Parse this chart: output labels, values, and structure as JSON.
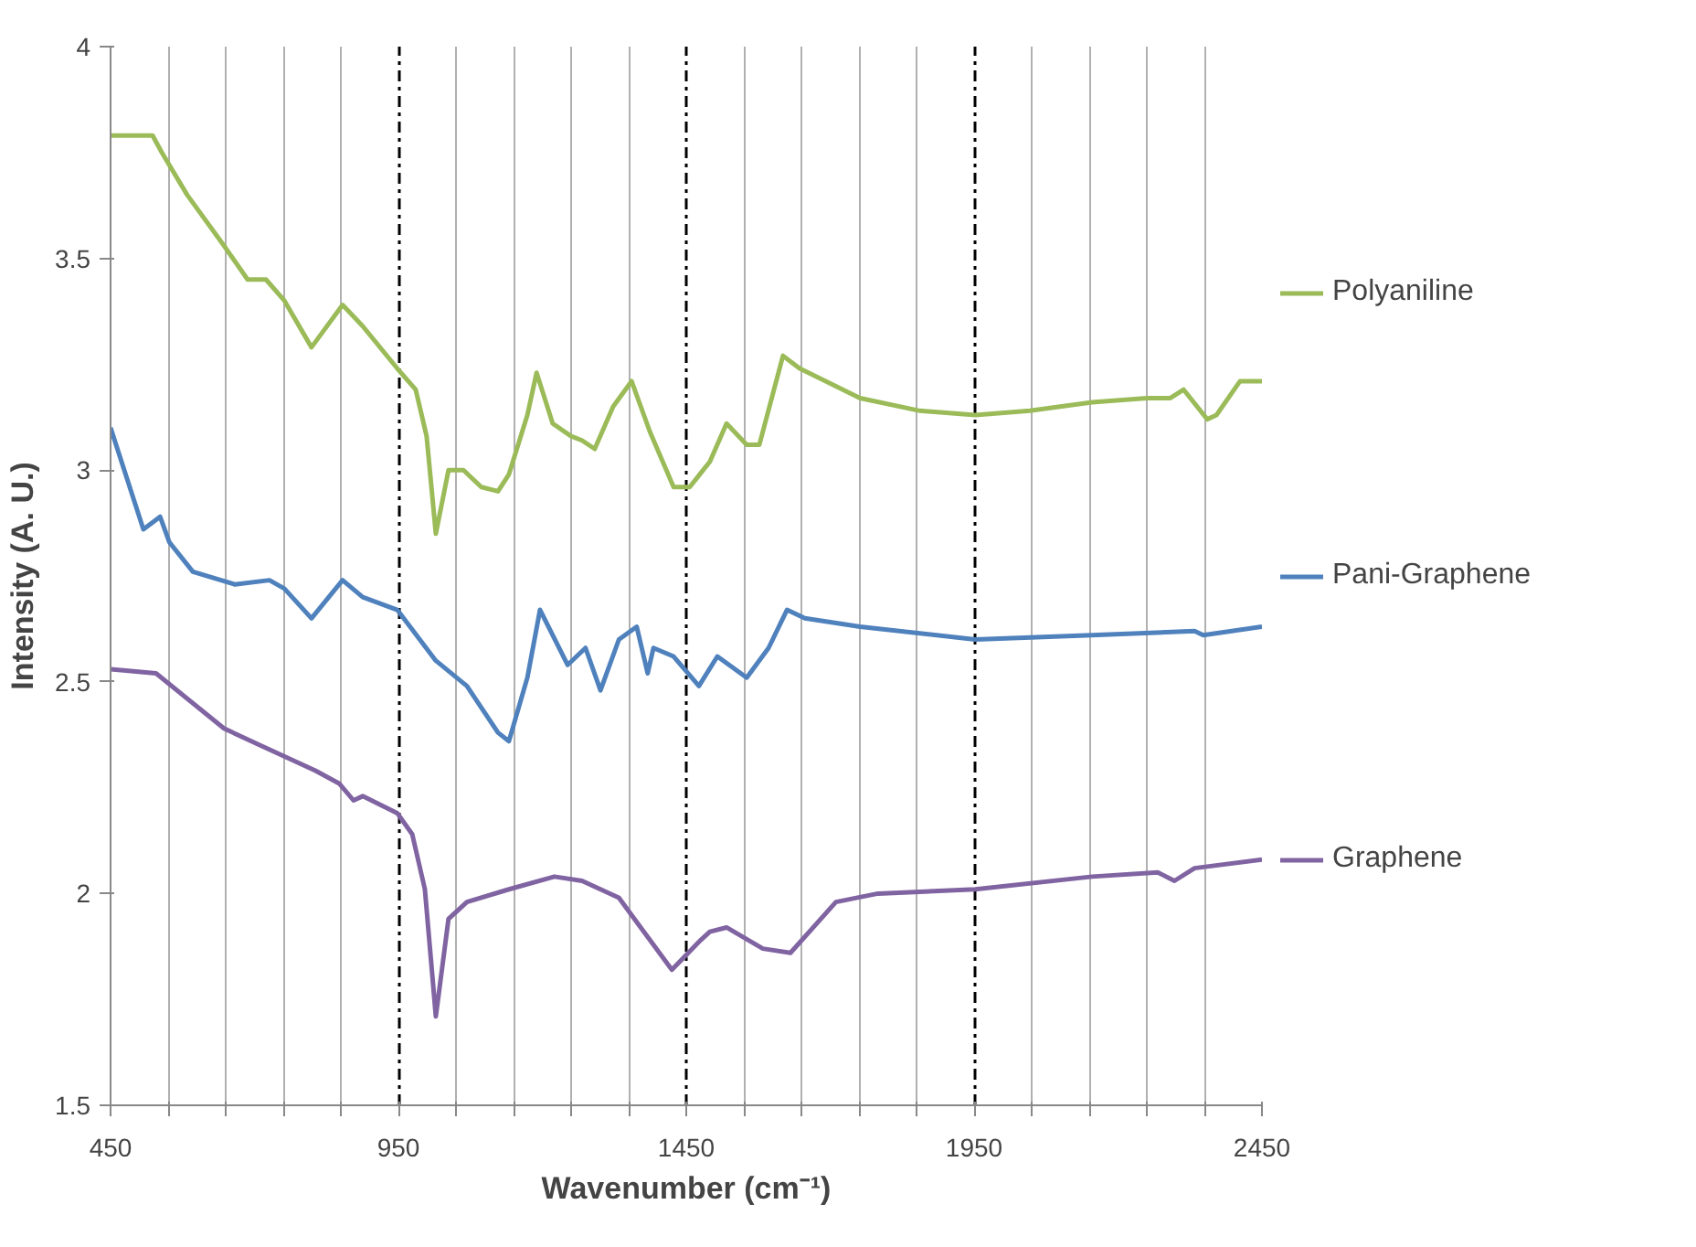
{
  "chart_data": {
    "type": "line",
    "xlabel": "Wavenumber (cm⁻¹)",
    "ylabel": "Intensity (A. U.)",
    "xlim": [
      450,
      2450
    ],
    "ylim": [
      1.5,
      4
    ],
    "xticks": [
      450,
      {
        "value": 550,
        "label": null
      },
      {
        "value": 650,
        "label": null
      },
      {
        "value": 750,
        "label": null
      },
      {
        "value": 850,
        "label": null
      },
      950,
      {
        "value": 1050,
        "label": null
      },
      {
        "value": 1150,
        "label": null
      },
      {
        "value": 1250,
        "label": null
      },
      {
        "value": 1350,
        "label": null
      },
      1450,
      {
        "value": 1550,
        "label": null
      },
      {
        "value": 1650,
        "label": null
      },
      {
        "value": 1750,
        "label": null
      },
      {
        "value": 1850,
        "label": null
      },
      1950,
      {
        "value": 2050,
        "label": null
      },
      {
        "value": 2150,
        "label": null
      },
      {
        "value": 2250,
        "label": null
      },
      {
        "value": 2350,
        "label": null
      },
      2450
    ],
    "yticks": [
      1.5,
      2,
      2.5,
      3,
      3.5,
      4
    ],
    "grid": "x",
    "legend": "right",
    "marker": "none",
    "line_style": "solid",
    "series": [
      {
        "name": "Polyaniline",
        "color": "#9bbb59",
        "x": [
          450,
          523,
          539,
          583,
          647,
          688,
          720,
          752,
          799,
          853,
          888,
          948,
          980,
          999,
          1015,
          1037,
          1063,
          1094,
          1123,
          1142,
          1174,
          1190,
          1218,
          1250,
          1269,
          1291,
          1323,
          1355,
          1387,
          1428,
          1444,
          1456,
          1491,
          1520,
          1555,
          1577,
          1618,
          1647,
          1752,
          1856,
          1952,
          2047,
          2155,
          2250,
          2291,
          2314,
          2355,
          2371,
          2412,
          2450
        ],
        "values": [
          3.79,
          3.79,
          3.75,
          3.65,
          3.53,
          3.45,
          3.45,
          3.4,
          3.29,
          3.39,
          3.34,
          3.24,
          3.19,
          3.08,
          2.85,
          3.0,
          3.0,
          2.96,
          2.95,
          2.99,
          3.13,
          3.23,
          3.11,
          3.08,
          3.07,
          3.05,
          3.15,
          3.21,
          3.09,
          2.96,
          2.96,
          2.96,
          3.02,
          3.11,
          3.06,
          3.06,
          3.27,
          3.24,
          3.17,
          3.14,
          3.13,
          3.14,
          3.16,
          3.17,
          3.17,
          3.19,
          3.12,
          3.13,
          3.21,
          3.21
        ]
      },
      {
        "name": "Pani-Graphene",
        "color": "#4f81bd",
        "x": [
          450,
          507,
          536,
          552,
          593,
          666,
          726,
          752,
          799,
          853,
          888,
          948,
          1015,
          1069,
          1123,
          1142,
          1174,
          1196,
          1244,
          1275,
          1301,
          1333,
          1364,
          1383,
          1393,
          1428,
          1472,
          1504,
          1555,
          1593,
          1625,
          1656,
          1752,
          1952,
          2155,
          2333,
          2348,
          2450
        ],
        "values": [
          3.1,
          2.86,
          2.89,
          2.83,
          2.76,
          2.73,
          2.74,
          2.72,
          2.65,
          2.74,
          2.7,
          2.67,
          2.55,
          2.49,
          2.38,
          2.36,
          2.51,
          2.67,
          2.54,
          2.58,
          2.48,
          2.6,
          2.63,
          2.52,
          2.58,
          2.56,
          2.49,
          2.56,
          2.51,
          2.58,
          2.67,
          2.65,
          2.63,
          2.6,
          2.61,
          2.62,
          2.61,
          2.63
        ]
      },
      {
        "name": "Graphene",
        "color": "#8064a2",
        "x": [
          450,
          529,
          647,
          710,
          806,
          847,
          872,
          888,
          948,
          974,
          996,
          1015,
          1037,
          1069,
          1142,
          1221,
          1269,
          1333,
          1387,
          1425,
          1475,
          1491,
          1520,
          1583,
          1631,
          1710,
          1783,
          1952,
          2155,
          2269,
          2298,
          2333,
          2450
        ],
        "values": [
          2.53,
          2.52,
          2.39,
          2.35,
          2.29,
          2.26,
          2.22,
          2.23,
          2.19,
          2.14,
          2.01,
          1.71,
          1.94,
          1.98,
          2.01,
          2.04,
          2.03,
          1.99,
          1.89,
          1.82,
          1.89,
          1.91,
          1.92,
          1.87,
          1.86,
          1.98,
          2.0,
          2.01,
          2.04,
          2.05,
          2.03,
          2.06,
          2.08
        ]
      }
    ]
  }
}
